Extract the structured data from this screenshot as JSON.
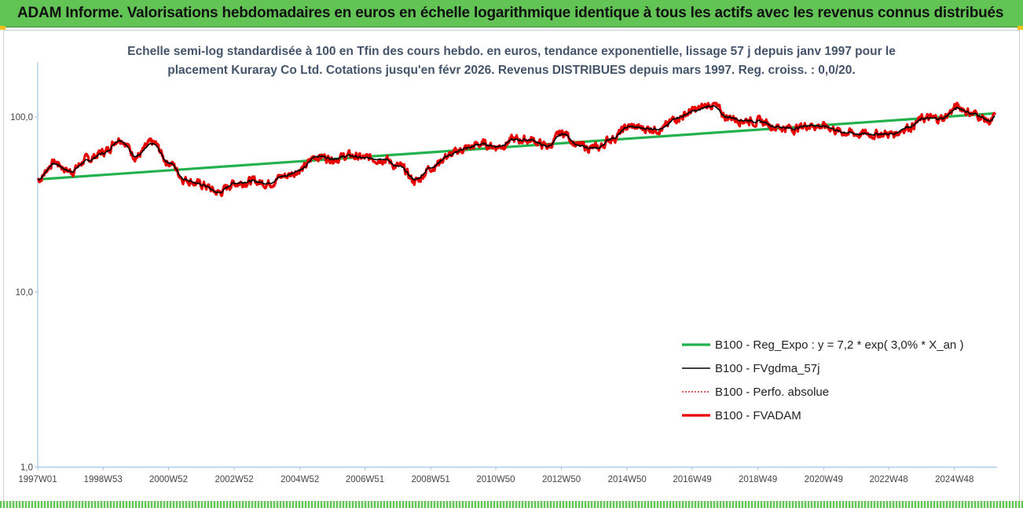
{
  "header": {
    "title": "ADAM Informe. Valorisations hebdomadaires en euros en échelle logarithmique identique à tous les actifs avec les revenus connus distribués"
  },
  "chart_data": {
    "type": "line",
    "title": "",
    "subtitle_lines": [
      "Echelle semi-log standardisée à 100 en Tfin des cours hebdo. en euros, tendance exponentielle, lissage 57 j depuis janv 1997 pour le",
      "placement Kuraray Co Ltd. Cotations jusqu'en févr 2026. Revenus DISTRIBUES depuis mars 1997. Reg. croiss. : 0,0/20."
    ],
    "yscale": "log",
    "ylim": [
      1,
      200
    ],
    "y_ticks": [
      {
        "value": 1,
        "label": "1,0"
      },
      {
        "value": 10,
        "label": "10,0"
      },
      {
        "value": 100,
        "label": "100,0"
      }
    ],
    "x_range": [
      1997.0,
      2026.15
    ],
    "x_ticks": [
      {
        "x": 1997.0,
        "label": "1997W01"
      },
      {
        "x": 1998.99,
        "label": "1998W53"
      },
      {
        "x": 2000.98,
        "label": "2000W52"
      },
      {
        "x": 2002.98,
        "label": "2002W52"
      },
      {
        "x": 2004.98,
        "label": "2004W52"
      },
      {
        "x": 2006.96,
        "label": "2006W51"
      },
      {
        "x": 2008.96,
        "label": "2008W51"
      },
      {
        "x": 2010.94,
        "label": "2010W50"
      },
      {
        "x": 2012.94,
        "label": "2012W50"
      },
      {
        "x": 2014.94,
        "label": "2014W50"
      },
      {
        "x": 2016.92,
        "label": "2016W49"
      },
      {
        "x": 2018.92,
        "label": "2018W49"
      },
      {
        "x": 2020.92,
        "label": "2020W49"
      },
      {
        "x": 2022.9,
        "label": "2022W48"
      },
      {
        "x": 2024.9,
        "label": "2024W48"
      }
    ],
    "grid": false,
    "legend_position": "bottom-right",
    "colors": {
      "trend": "#22b14c",
      "smooth": "#000000",
      "perf": "#c00000",
      "adam": "#e60000"
    },
    "series": [
      {
        "name": "B100 - Reg_Expo : y = 7,2 * exp( 3,0% *  X_an )",
        "key": "trend",
        "style": "solid-thick",
        "x": [
          1997.0,
          2026.15
        ],
        "y": [
          44,
          105
        ]
      },
      {
        "name": "B100 - FVgdma_57j",
        "key": "smooth",
        "style": "solid-thin",
        "x": [
          1997.0,
          1997.5,
          1998.0,
          1998.5,
          1999.0,
          1999.5,
          2000.0,
          2000.5,
          2001.0,
          2001.5,
          2002.0,
          2002.5,
          2003.0,
          2003.5,
          2004.0,
          2004.5,
          2005.0,
          2005.5,
          2006.0,
          2006.5,
          2007.0,
          2007.5,
          2008.0,
          2008.5,
          2009.0,
          2009.5,
          2010.0,
          2010.5,
          2011.0,
          2011.5,
          2012.0,
          2012.5,
          2013.0,
          2013.5,
          2014.0,
          2014.5,
          2015.0,
          2015.5,
          2016.0,
          2016.5,
          2017.0,
          2017.5,
          2018.0,
          2018.5,
          2019.0,
          2019.5,
          2020.0,
          2020.5,
          2021.0,
          2021.5,
          2022.0,
          2022.5,
          2023.0,
          2023.5,
          2024.0,
          2024.5,
          2025.0,
          2025.5,
          2026.0,
          2026.15
        ],
        "y": [
          44,
          54,
          49,
          56,
          62,
          74,
          60,
          70,
          55,
          44,
          41,
          37,
          42,
          43,
          42,
          46,
          50,
          60,
          58,
          60,
          58,
          58,
          52,
          44,
          52,
          60,
          66,
          70,
          68,
          74,
          74,
          68,
          80,
          68,
          66,
          76,
          88,
          86,
          86,
          100,
          108,
          116,
          100,
          96,
          94,
          88,
          86,
          90,
          88,
          82,
          80,
          80,
          80,
          88,
          98,
          98,
          112,
          104,
          95,
          100
        ]
      },
      {
        "name": "B100 - Perfo. absolue",
        "key": "perf",
        "style": "dotted",
        "x": [
          1997.0,
          1997.5,
          1998.0,
          1998.5,
          1999.0,
          1999.5,
          2000.0,
          2000.5,
          2001.0,
          2001.5,
          2002.0,
          2002.5,
          2003.0,
          2003.5,
          2004.0,
          2004.5,
          2005.0,
          2005.5,
          2006.0,
          2006.5,
          2007.0,
          2007.5,
          2008.0,
          2008.5,
          2009.0,
          2009.5,
          2010.0,
          2010.5,
          2011.0,
          2011.5,
          2012.0,
          2012.5,
          2013.0,
          2013.5,
          2014.0,
          2014.5,
          2015.0,
          2015.5,
          2016.0,
          2016.5,
          2017.0,
          2017.5,
          2018.0,
          2018.5,
          2019.0,
          2019.5,
          2020.0,
          2020.5,
          2021.0,
          2021.5,
          2022.0,
          2022.5,
          2023.0,
          2023.5,
          2024.0,
          2024.5,
          2025.0,
          2025.5,
          2026.0,
          2026.15
        ],
        "y": [
          44,
          55,
          49,
          57,
          63,
          76,
          60,
          71,
          55,
          44,
          41,
          37,
          42,
          43,
          42,
          46,
          50,
          60,
          58,
          60,
          58,
          58,
          52,
          43,
          52,
          60,
          66,
          70,
          68,
          74,
          74,
          68,
          81,
          68,
          66,
          76,
          88,
          86,
          86,
          100,
          109,
          118,
          100,
          96,
          94,
          88,
          86,
          90,
          88,
          82,
          80,
          80,
          80,
          88,
          98,
          98,
          114,
          104,
          94,
          100
        ]
      },
      {
        "name": "B100 - FVADAM",
        "key": "adam",
        "style": "solid-thick",
        "x": [
          1997.0,
          1997.5,
          1998.0,
          1998.5,
          1999.0,
          1999.5,
          2000.0,
          2000.5,
          2001.0,
          2001.5,
          2002.0,
          2002.5,
          2003.0,
          2003.5,
          2004.0,
          2004.5,
          2005.0,
          2005.5,
          2006.0,
          2006.5,
          2007.0,
          2007.5,
          2008.0,
          2008.5,
          2009.0,
          2009.5,
          2010.0,
          2010.5,
          2011.0,
          2011.5,
          2012.0,
          2012.5,
          2013.0,
          2013.5,
          2014.0,
          2014.5,
          2015.0,
          2015.5,
          2016.0,
          2016.5,
          2017.0,
          2017.5,
          2018.0,
          2018.5,
          2019.0,
          2019.5,
          2020.0,
          2020.5,
          2021.0,
          2021.5,
          2022.0,
          2022.5,
          2023.0,
          2023.5,
          2024.0,
          2024.5,
          2025.0,
          2025.5,
          2026.0,
          2026.15
        ],
        "y": [
          44,
          55,
          49,
          57,
          63,
          76,
          60,
          71,
          55,
          44,
          41,
          37,
          42,
          43,
          42,
          46,
          50,
          60,
          58,
          60,
          58,
          58,
          52,
          43,
          52,
          60,
          66,
          70,
          68,
          74,
          74,
          68,
          81,
          68,
          66,
          76,
          88,
          86,
          86,
          100,
          109,
          118,
          100,
          96,
          94,
          88,
          86,
          90,
          88,
          82,
          80,
          80,
          80,
          88,
          98,
          98,
          114,
          104,
          94,
          100
        ]
      }
    ]
  }
}
